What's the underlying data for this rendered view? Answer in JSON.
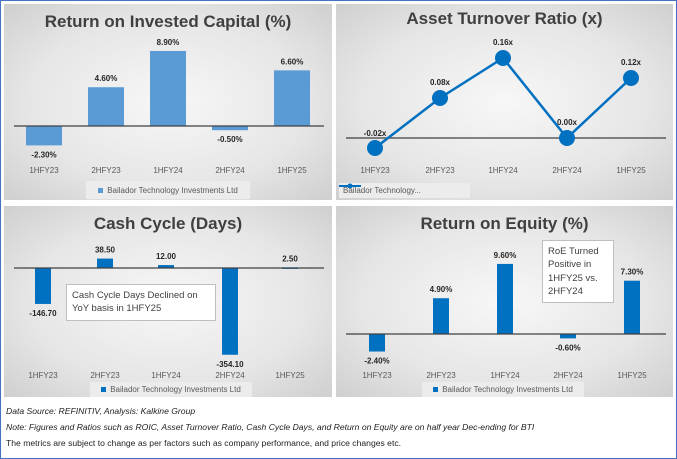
{
  "chart_data": [
    {
      "type": "bar",
      "title": "Return on Invested Capital (%)",
      "categories": [
        "1HFY23",
        "2HFY23",
        "1HFY24",
        "2HFY24",
        "1HFY25"
      ],
      "series": [
        {
          "name": "Bailador Technology Investments Ltd",
          "values": [
            -2.3,
            4.6,
            8.9,
            -0.5,
            6.6
          ]
        }
      ],
      "data_labels": [
        "-2.30%",
        "4.60%",
        "8.90%",
        "-0.50%",
        "6.60%"
      ],
      "color": "#5b9bd5",
      "legend": "bottom",
      "grid": false
    },
    {
      "type": "line",
      "title": "Asset Turnover Ratio (x)",
      "categories": [
        "1HFY23",
        "2HFY23",
        "1HFY24",
        "2HFY24",
        "1HFY25"
      ],
      "series": [
        {
          "name": "Bailador Technology...",
          "values": [
            -0.02,
            0.08,
            0.16,
            0.0,
            0.12
          ]
        }
      ],
      "data_labels": [
        "-0.02x",
        "0.08x",
        "0.16x",
        "0.00x",
        "0.12x"
      ],
      "color": "#0070c0",
      "legend": "bottom-left",
      "grid": false
    },
    {
      "type": "bar",
      "title": "Cash Cycle (Days)",
      "categories": [
        "1HFY23",
        "2HFY23",
        "1HFY24",
        "2HFY24",
        "1HFY25"
      ],
      "series": [
        {
          "name": "Bailador Technology Investments Ltd",
          "values": [
            -146.7,
            38.5,
            12.0,
            -354.1,
            2.5
          ]
        }
      ],
      "data_labels": [
        "-146.70",
        "38.50",
        "12.00",
        "-354.10",
        "2.50"
      ],
      "color": "#0070c0",
      "legend": "bottom",
      "grid": false,
      "annotation": "Cash Cycle Days Declined on YoY basis in 1HFY25"
    },
    {
      "type": "bar",
      "title": "Return on Equity (%)",
      "categories": [
        "1HFY23",
        "2HFY23",
        "1HFY24",
        "2HFY24",
        "1HFY25"
      ],
      "series": [
        {
          "name": "Bailador Technology Investments Ltd",
          "values": [
            -2.4,
            4.9,
            9.6,
            -0.6,
            7.3
          ]
        }
      ],
      "data_labels": [
        "-2.40%",
        "4.90%",
        "9.60%",
        "-0.60%",
        "7.30%"
      ],
      "color": "#0070c0",
      "legend": "bottom",
      "grid": false,
      "annotation": "RoE Turned Positive in 1HFY25 vs. 2HFY24"
    }
  ],
  "footer": {
    "source": "Data Source: REFINITIV, Analysis: Kalkine Group",
    "note": "Note: Figures and Ratios such as ROIC, Asset Turnover Ratio, Cash Cycle Days, and Return on Equity are on half year Dec-ending for BTI",
    "disclaimer": "The metrics are subject to change as per factors such as company performance, and price changes etc."
  }
}
